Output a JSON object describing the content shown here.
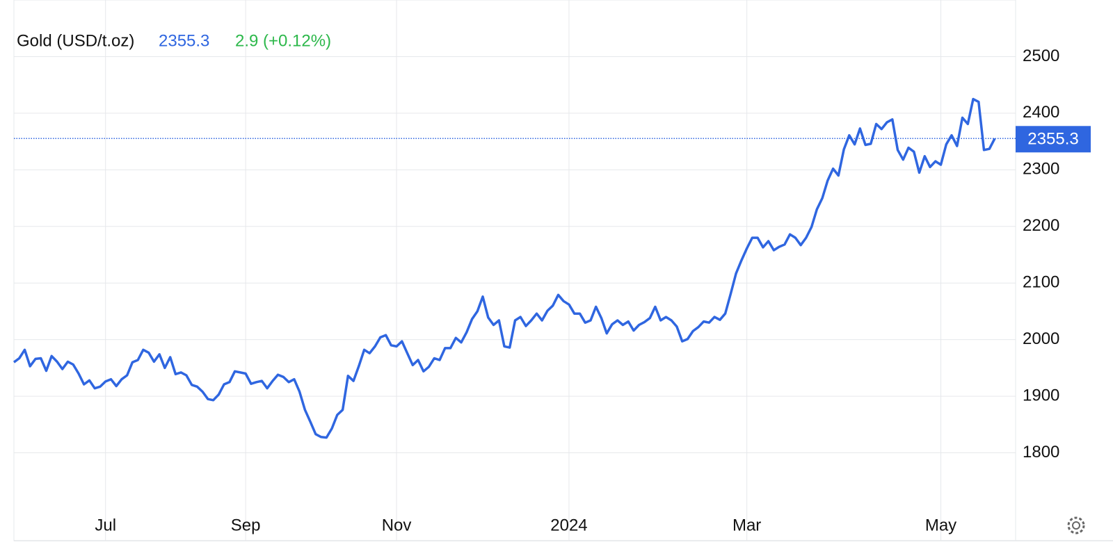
{
  "chart_data": {
    "type": "line",
    "title": "Gold (USD/t.oz)",
    "last": 2355.3,
    "change": "2.9 (+0.12%)",
    "series": [
      {
        "name": "Gold",
        "color": "#2f66e0",
        "values": [
          1960,
          1967,
          1982,
          1953,
          1966,
          1967,
          1945,
          1971,
          1961,
          1948,
          1961,
          1956,
          1940,
          1921,
          1928,
          1914,
          1917,
          1926,
          1930,
          1918,
          1930,
          1937,
          1960,
          1964,
          1982,
          1977,
          1961,
          1974,
          1950,
          1969,
          1939,
          1942,
          1937,
          1920,
          1917,
          1908,
          1895,
          1893,
          1903,
          1921,
          1925,
          1944,
          1942,
          1940,
          1922,
          1925,
          1927,
          1914,
          1927,
          1938,
          1934,
          1925,
          1930,
          1908,
          1876,
          1855,
          1833,
          1828,
          1827,
          1843,
          1867,
          1876,
          1936,
          1927,
          1953,
          1982,
          1976,
          1988,
          2004,
          2008,
          1990,
          1988,
          1997,
          1976,
          1955,
          1964,
          1944,
          1952,
          1967,
          1964,
          1985,
          1985,
          2003,
          1995,
          2013,
          2036,
          2050,
          2076,
          2039,
          2026,
          2034,
          1988,
          1986,
          2034,
          2040,
          2024,
          2034,
          2046,
          2034,
          2051,
          2060,
          2079,
          2068,
          2062,
          2046,
          2046,
          2030,
          2034,
          2058,
          2038,
          2011,
          2027,
          2034,
          2026,
          2032,
          2016,
          2026,
          2031,
          2038,
          2058,
          2034,
          2040,
          2034,
          2023,
          1997,
          2001,
          2015,
          2022,
          2032,
          2030,
          2040,
          2035,
          2046,
          2081,
          2117,
          2140,
          2161,
          2180,
          2180,
          2163,
          2174,
          2158,
          2164,
          2168,
          2186,
          2180,
          2167,
          2180,
          2199,
          2230,
          2250,
          2281,
          2302,
          2290,
          2336,
          2361,
          2345,
          2373,
          2344,
          2346,
          2381,
          2372,
          2384,
          2389,
          2335,
          2318,
          2339,
          2332,
          2295,
          2324,
          2305,
          2315,
          2309,
          2345,
          2361,
          2342,
          2392,
          2381,
          2425,
          2420,
          2335,
          2337,
          2355.3
        ]
      }
    ],
    "xticks": [
      {
        "value": 17,
        "label": "Jul"
      },
      {
        "value": 43,
        "label": "Sep"
      },
      {
        "value": 71,
        "label": "Nov"
      },
      {
        "value": 103,
        "label": "2024"
      },
      {
        "value": 136,
        "label": "Mar"
      },
      {
        "value": 172,
        "label": "May"
      }
    ],
    "ylim": [
      1700,
      2600
    ],
    "yticks": [
      1800,
      1900,
      2000,
      2100,
      2200,
      2300,
      2400,
      2500
    ],
    "grid": true
  }
}
